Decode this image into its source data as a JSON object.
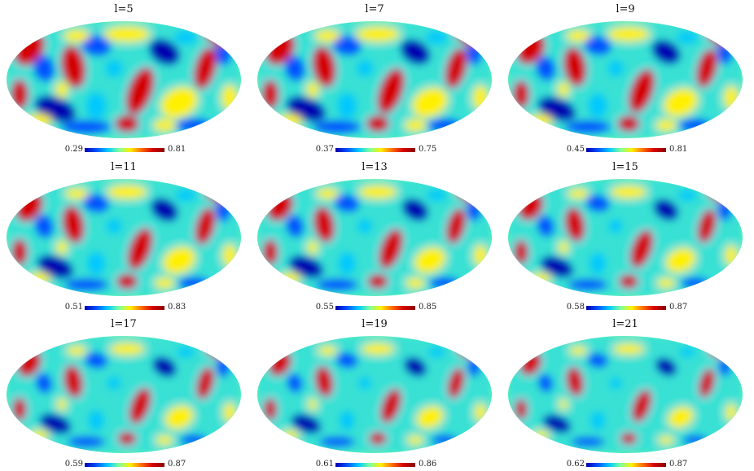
{
  "figure": {
    "colormap": [
      "#0000b0",
      "#0050ff",
      "#00c8ff",
      "#7dffa0",
      "#fff000",
      "#ff6a00",
      "#d40000",
      "#8a0000"
    ],
    "panels": [
      {
        "title": "l=5",
        "cbar_min": "0.29",
        "cbar_max": "0.81"
      },
      {
        "title": "l=7",
        "cbar_min": "0.37",
        "cbar_max": "0.75"
      },
      {
        "title": "l=9",
        "cbar_min": "0.45",
        "cbar_max": "0.81"
      },
      {
        "title": "l=11",
        "cbar_min": "0.51",
        "cbar_max": "0.83"
      },
      {
        "title": "l=13",
        "cbar_min": "0.55",
        "cbar_max": "0.85"
      },
      {
        "title": "l=15",
        "cbar_min": "0.58",
        "cbar_max": "0.87"
      },
      {
        "title": "l=17",
        "cbar_min": "0.59",
        "cbar_max": "0.87"
      },
      {
        "title": "l=19",
        "cbar_min": "0.61",
        "cbar_max": "0.86"
      },
      {
        "title": "l=21",
        "cbar_min": "0.62",
        "cbar_max": "0.87"
      }
    ]
  }
}
